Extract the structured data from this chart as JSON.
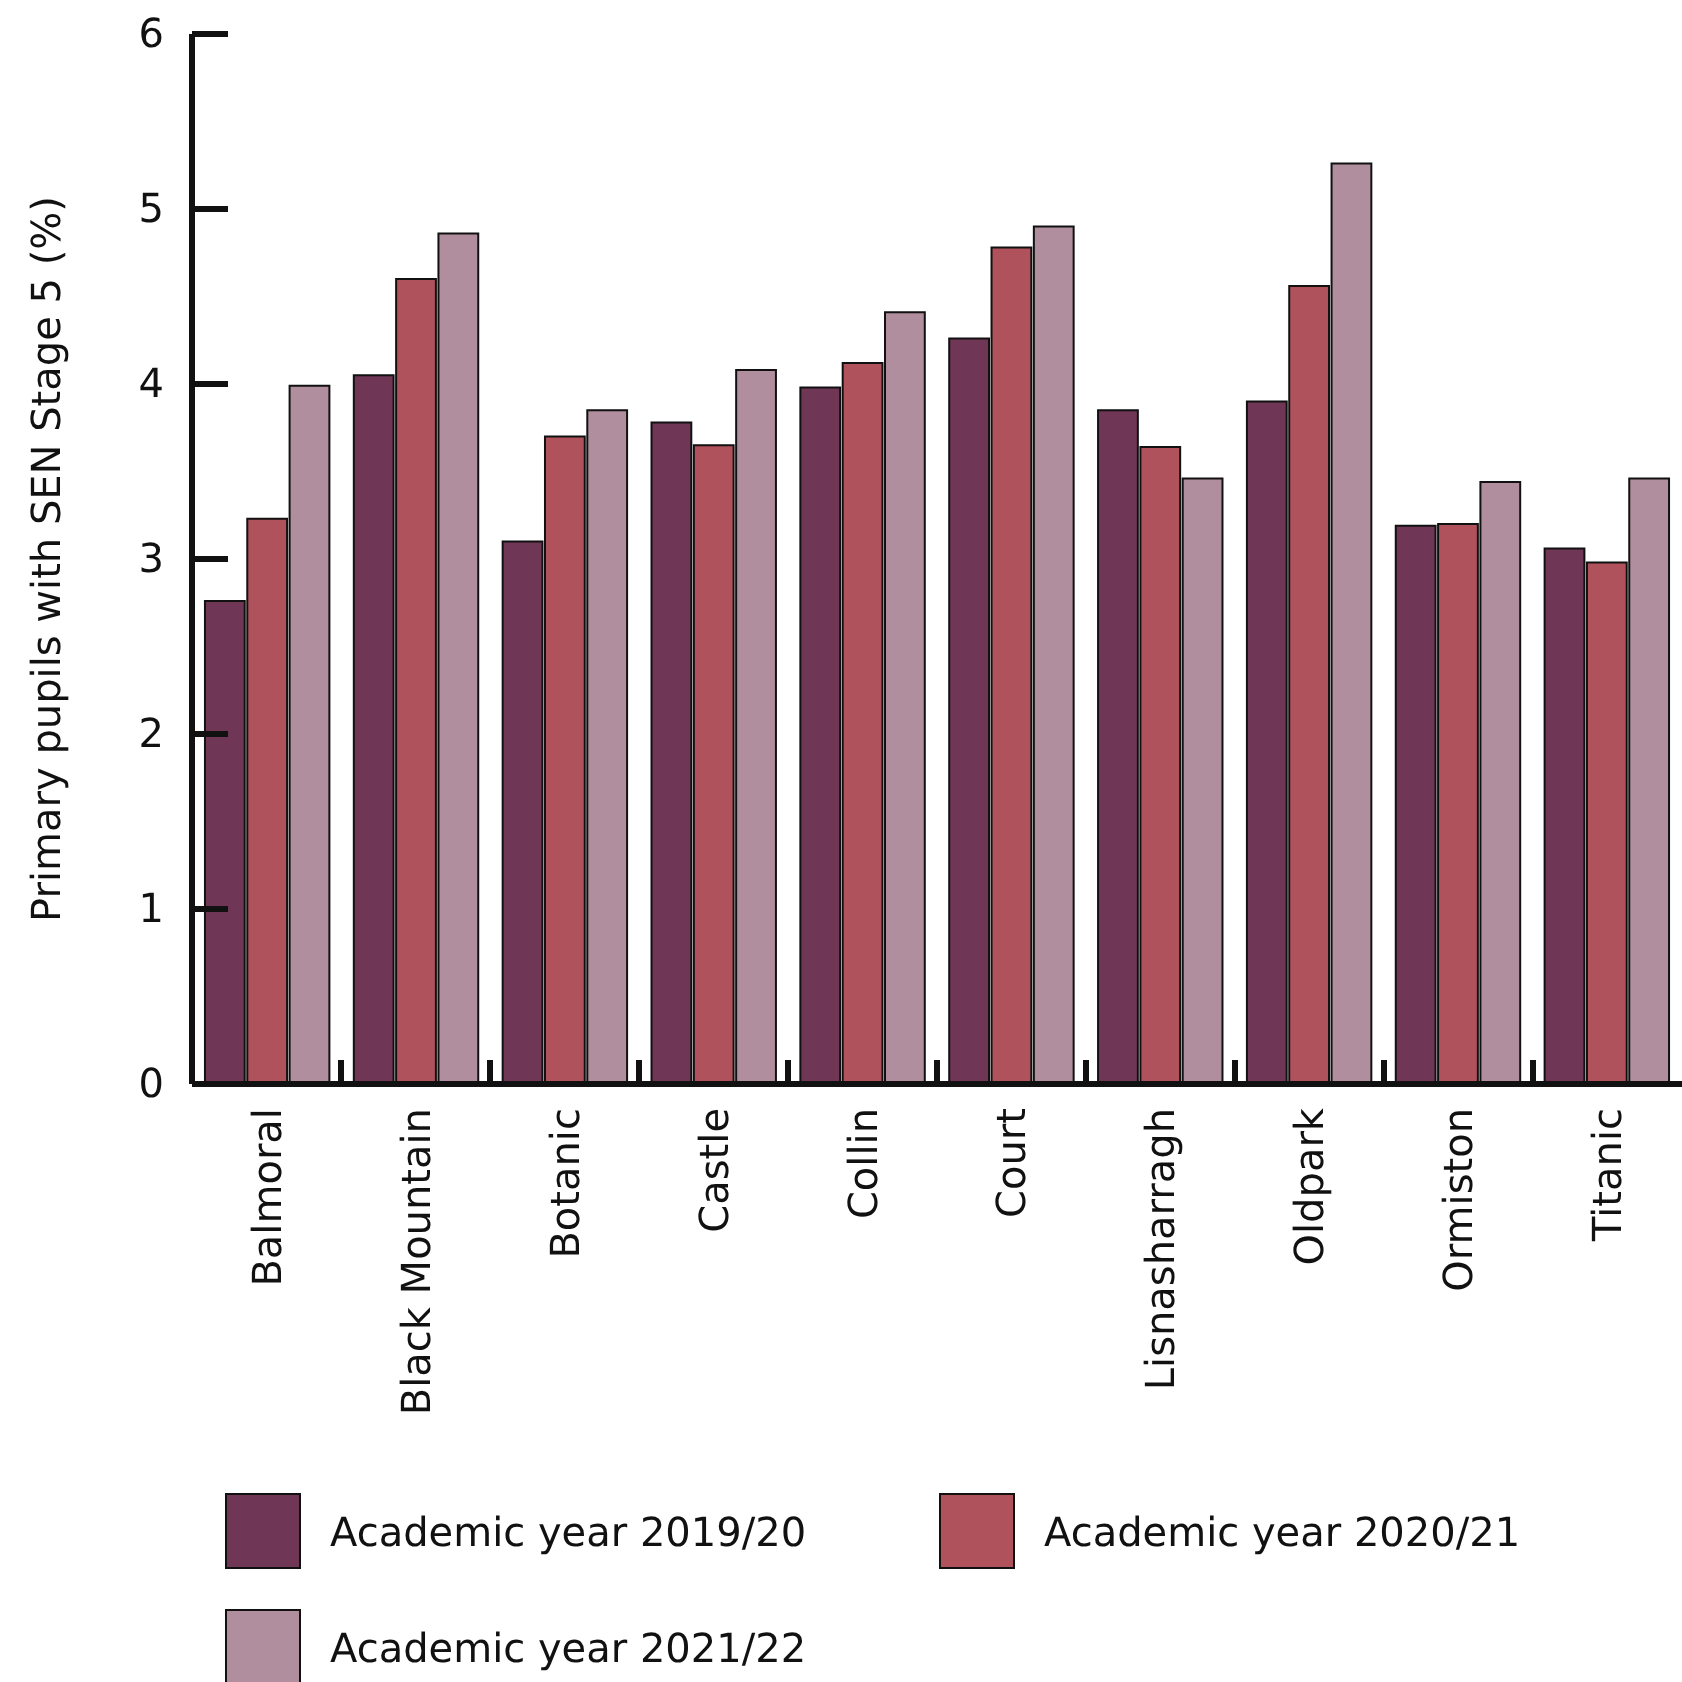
{
  "chart_data": {
    "type": "bar",
    "ylabel": "Primary pupils with SEN Stage 5 (%)",
    "categories": [
      "Balmoral",
      "Black Mountain",
      "Botanic",
      "Castle",
      "Collin",
      "Court",
      "Lisnasharragh",
      "Oldpark",
      "Ormiston",
      "Titanic"
    ],
    "series": [
      {
        "name": "Academic year 2019/20",
        "color": "#6f3655",
        "values": [
          2.76,
          4.05,
          3.1,
          3.78,
          3.98,
          4.26,
          3.85,
          3.9,
          3.19,
          3.06
        ]
      },
      {
        "name": "Academic year 2020/21",
        "color": "#b0525b",
        "values": [
          3.23,
          4.6,
          3.7,
          3.65,
          4.12,
          4.78,
          3.64,
          4.56,
          3.2,
          2.98
        ]
      },
      {
        "name": "Academic year 2021/22",
        "color": "#b08e9d",
        "values": [
          3.99,
          4.86,
          3.85,
          4.08,
          4.41,
          4.9,
          3.46,
          5.26,
          3.44,
          3.46
        ]
      }
    ],
    "ylim": [
      0,
      6
    ],
    "yticks": [
      0,
      1,
      2,
      3,
      4,
      5,
      6
    ],
    "grid": false,
    "legend": "bottom"
  }
}
